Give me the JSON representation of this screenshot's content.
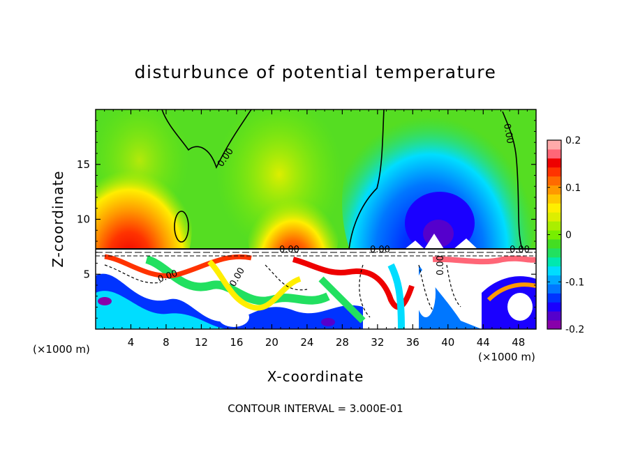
{
  "chart_data": {
    "type": "heatmap",
    "title": "disturbunce of potential temperature",
    "xlabel": "X-coordinate",
    "ylabel": "Z-coordinate",
    "x_unit_left": "(×1000 m)",
    "x_unit_right": "(×1000 m)",
    "footer": "CONTOUR INTERVAL = 3.000E-01",
    "xlim": [
      0,
      50
    ],
    "ylim": [
      0,
      20
    ],
    "x_ticks": [
      "4",
      "8",
      "12",
      "16",
      "20",
      "24",
      "28",
      "32",
      "36",
      "40",
      "44",
      "48"
    ],
    "y_ticks": [
      "5",
      "10",
      "15"
    ],
    "colorbar": {
      "range": [
        -0.2,
        0.2
      ],
      "tick_labels": [
        "0.2",
        "0.1",
        "0",
        "-0.1",
        "-0.2"
      ],
      "tick_values": [
        0.2,
        0.1,
        0,
        -0.1,
        -0.2
      ],
      "colors": [
        "#8800aa",
        "#5500cc",
        "#1a00ff",
        "#0033ff",
        "#0077ff",
        "#00aaff",
        "#00ddff",
        "#00e8b0",
        "#22e060",
        "#44dd22",
        "#77ee00",
        "#aaee00",
        "#ddee00",
        "#ffee00",
        "#ffc800",
        "#ff9900",
        "#ff6a00",
        "#ff3300",
        "#ee0000",
        "#ff6677",
        "#ffaaaa"
      ]
    },
    "contour_labels": [
      "0.00",
      "0.00",
      "0.00",
      "0.00",
      "0.00",
      "0.00",
      "0.00",
      "0.00"
    ],
    "boundary_layer_top": 7.2
  }
}
